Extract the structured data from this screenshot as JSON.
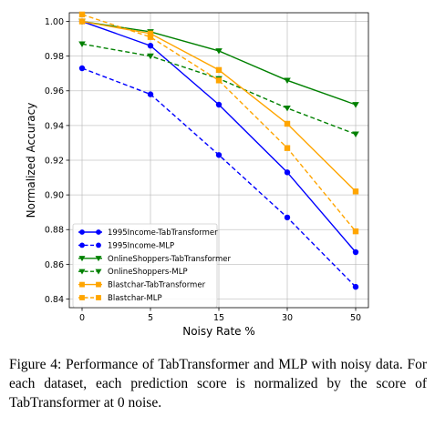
{
  "caption": "Figure 4: Performance of TabTransformer and MLP with noisy data. For each dataset, each prediction score is normalized by the score of TabTransformer at 0 noise.",
  "chart_data": {
    "type": "line",
    "categories": [
      "0",
      "5",
      "15",
      "30",
      "50"
    ],
    "xlabel": "Noisy Rate %",
    "ylabel": "Normalized Accuracy",
    "ylim": [
      0.835,
      1.005
    ],
    "yticks": [
      "0.84",
      "0.86",
      "0.88",
      "0.90",
      "0.92",
      "0.94",
      "0.96",
      "0.98",
      "1.00"
    ],
    "grid": true,
    "legend_position": "lower-left",
    "series": [
      {
        "name": "1995Income-TabTransformer",
        "color": "#0000ff",
        "dash": "solid",
        "marker": "circle",
        "values": [
          1.0,
          0.986,
          0.952,
          0.913,
          0.867
        ]
      },
      {
        "name": "1995Income-MLP",
        "color": "#0000ff",
        "dash": "dashed",
        "marker": "circle",
        "values": [
          0.973,
          0.958,
          0.923,
          0.887,
          0.847
        ]
      },
      {
        "name": "OnlineShoppers-TabTransformer",
        "color": "#008000",
        "dash": "solid",
        "marker": "triangle-down",
        "values": [
          1.0,
          0.994,
          0.983,
          0.966,
          0.952
        ]
      },
      {
        "name": "OnlineShoppers-MLP",
        "color": "#008000",
        "dash": "dashed",
        "marker": "triangle-down",
        "values": [
          0.987,
          0.98,
          0.967,
          0.95,
          0.935
        ]
      },
      {
        "name": "Blastchar-TabTransformer",
        "color": "#ffa500",
        "dash": "solid",
        "marker": "square",
        "values": [
          1.0,
          0.993,
          0.972,
          0.941,
          0.902
        ]
      },
      {
        "name": "Blastchar-MLP",
        "color": "#ffa500",
        "dash": "dashed",
        "marker": "square",
        "values": [
          1.004,
          0.991,
          0.966,
          0.927,
          0.879
        ]
      }
    ]
  }
}
